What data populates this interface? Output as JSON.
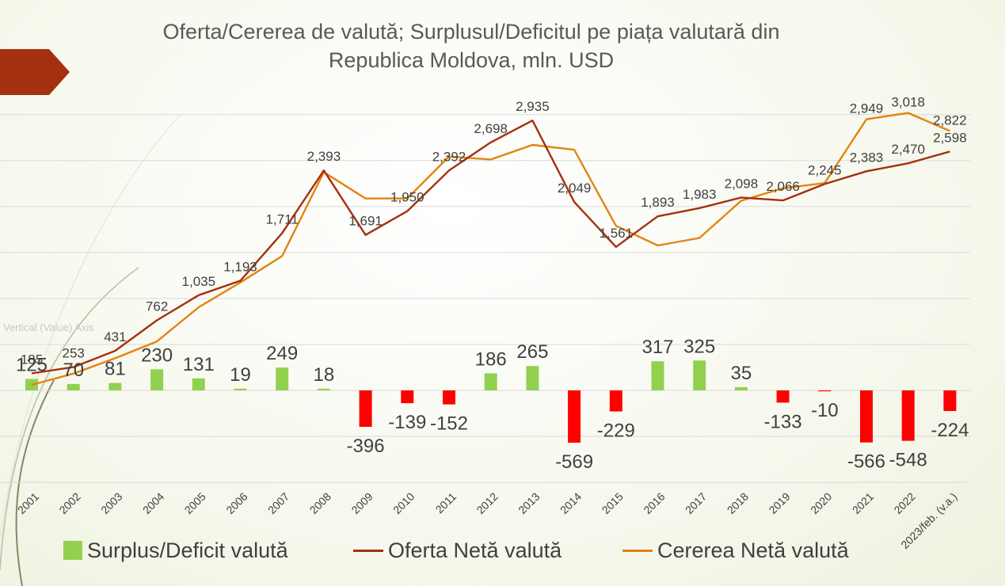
{
  "title_lines": [
    "Oferta/Cererea de valută; Surplusul/Deficitul pe piața valutară din",
    "Republica Moldova, mln. USD"
  ],
  "ghost_label": "Vertical (Value) Axis",
  "legend": {
    "surplus": "Surplus/Deficit valută",
    "oferta": "Oferta Netă valută",
    "cererea": "Cererea Netă valută"
  },
  "colors": {
    "surplus_positive": "#92d050",
    "surplus_negative": "#ff0000",
    "oferta": "#a5300f",
    "cererea": "#e48312",
    "grid": "#d9d9d9",
    "text": "#404040",
    "title": "#595959",
    "arrow": "#a5300f"
  },
  "chart_data": {
    "type": "bar+line",
    "categories": [
      "2001",
      "2002",
      "2003",
      "2004",
      "2005",
      "2006",
      "2007",
      "2008",
      "2009",
      "2010",
      "2011",
      "2012",
      "2013",
      "2014",
      "2015",
      "2016",
      "2017",
      "2018",
      "2019",
      "2020",
      "2021",
      "2022",
      "2023/feb. (v.a.)"
    ],
    "series": [
      {
        "name": "Surplus/Deficit valută",
        "type": "bar",
        "axis": "primary",
        "values": [
          125,
          70,
          81,
          230,
          131,
          19,
          249,
          18,
          -396,
          -139,
          -152,
          186,
          265,
          -569,
          -229,
          317,
          325,
          35,
          -133,
          -10,
          -566,
          -548,
          -224
        ],
        "labels": [
          "125",
          "70",
          "81",
          "230",
          "131",
          "19",
          "249",
          "18",
          "-396",
          "-139",
          "-152",
          "186",
          "265",
          "-569",
          "-229",
          "317",
          "325",
          "35",
          "-133",
          "-10",
          "-566",
          "-548",
          "-224"
        ]
      },
      {
        "name": "Oferta Netă valută",
        "type": "line",
        "axis": "primary",
        "values": [
          185,
          253,
          431,
          762,
          1035,
          1193,
          1711,
          2393,
          1691,
          1950,
          2392,
          2698,
          2935,
          2049,
          1561,
          1893,
          1983,
          2098,
          2066,
          2245,
          2383,
          2470,
          2598
        ],
        "labels": [
          "185",
          "253",
          "431",
          "762",
          "1,035",
          "1,193",
          "1,711",
          "2,393",
          "1,691",
          "1,950",
          "2,392",
          "2,698",
          "2,935",
          "2,049",
          "1,561",
          "1,893",
          "1,983",
          "2,098",
          "2,066",
          "2,245",
          "2,383",
          "2,470",
          "2,598"
        ]
      },
      {
        "name": "Cererea Netă valută",
        "type": "line",
        "axis": "primary",
        "values": [
          60,
          183,
          350,
          532,
          904,
          1174,
          1462,
          2375,
          2087,
          2089,
          2544,
          2512,
          2670,
          2618,
          1790,
          1576,
          1658,
          2063,
          2199,
          2255,
          2949,
          3018,
          2822
        ],
        "labels": [
          "",
          "",
          "",
          "",
          "",
          "",
          "",
          "",
          "",
          "",
          "",
          "",
          "",
          "",
          "",
          "",
          "",
          "",
          "",
          "",
          "2,949",
          "3,018",
          "2,822"
        ]
      }
    ],
    "ylim": [
      -1000,
      3500
    ],
    "grid": true,
    "legend_position": "bottom"
  }
}
